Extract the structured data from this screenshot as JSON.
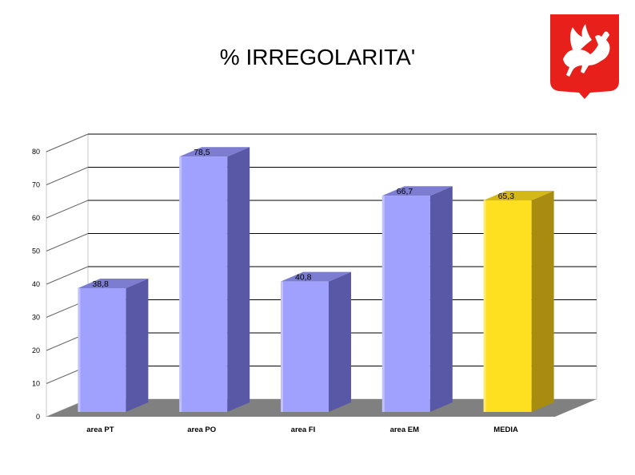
{
  "page": {
    "title": "% IRREGOLARITA'",
    "logo": "tuscany-region-pegasus-emblem"
  },
  "colors": {
    "bar_front": "#a0a0ff",
    "bar_side": "#5858a6",
    "bar_top": "#7c7cd0",
    "highlight_front": "#ffe020",
    "highlight_side": "#a88c10",
    "highlight_top": "#d4b818",
    "floor": "#808080",
    "grid": "#000000",
    "logo_red": "#e8201c"
  },
  "chart_data": {
    "type": "bar",
    "title": "% IRREGOLARITA'",
    "xlabel": "",
    "ylabel": "",
    "categories": [
      "area PT",
      "area PO",
      "area FI",
      "area EM",
      "MEDIA"
    ],
    "values": [
      38.8,
      78.5,
      40.8,
      66.7,
      65.3
    ],
    "value_labels": [
      "38,8",
      "78,5",
      "40,8",
      "66,7",
      "65,3"
    ],
    "highlighted_category": "MEDIA",
    "ylim": [
      0,
      80
    ],
    "yticks": [
      0,
      10,
      20,
      30,
      40,
      50,
      60,
      70,
      80
    ],
    "grid": true,
    "legend": "none",
    "style": "3d"
  }
}
